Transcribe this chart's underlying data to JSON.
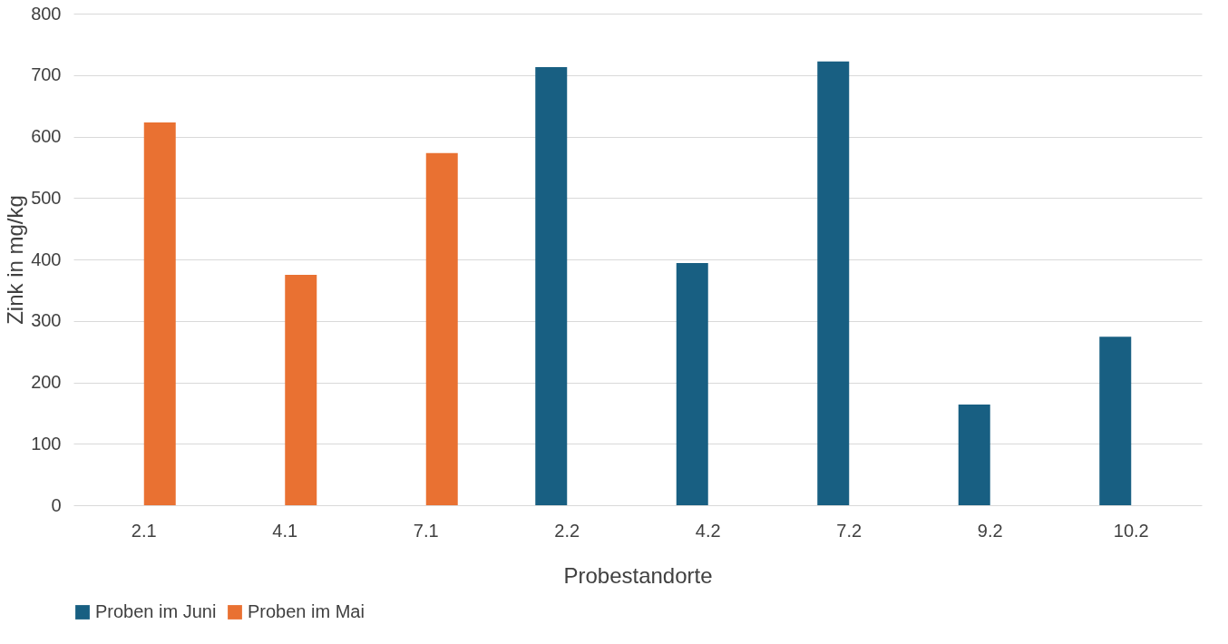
{
  "chart_data": {
    "type": "bar",
    "xlabel": "Probestandorte",
    "ylabel": "Zink in mg/kg",
    "categories": [
      "2.1",
      "4.1",
      "7.1",
      "2.2",
      "4.2",
      "7.2",
      "9.2",
      "10.2"
    ],
    "series": [
      {
        "name": "Proben im Juni",
        "color": "#185f82",
        "values": [
          null,
          null,
          null,
          713,
          394,
          722,
          164,
          274
        ]
      },
      {
        "name": "Proben im Mai",
        "color": "#e97132",
        "values": [
          623,
          375,
          573,
          null,
          null,
          null,
          null,
          null
        ]
      }
    ],
    "ylim": [
      0,
      800
    ],
    "yticks": [
      0,
      100,
      200,
      300,
      400,
      500,
      600,
      700,
      800
    ],
    "grid": "y",
    "legend": "bottom"
  }
}
